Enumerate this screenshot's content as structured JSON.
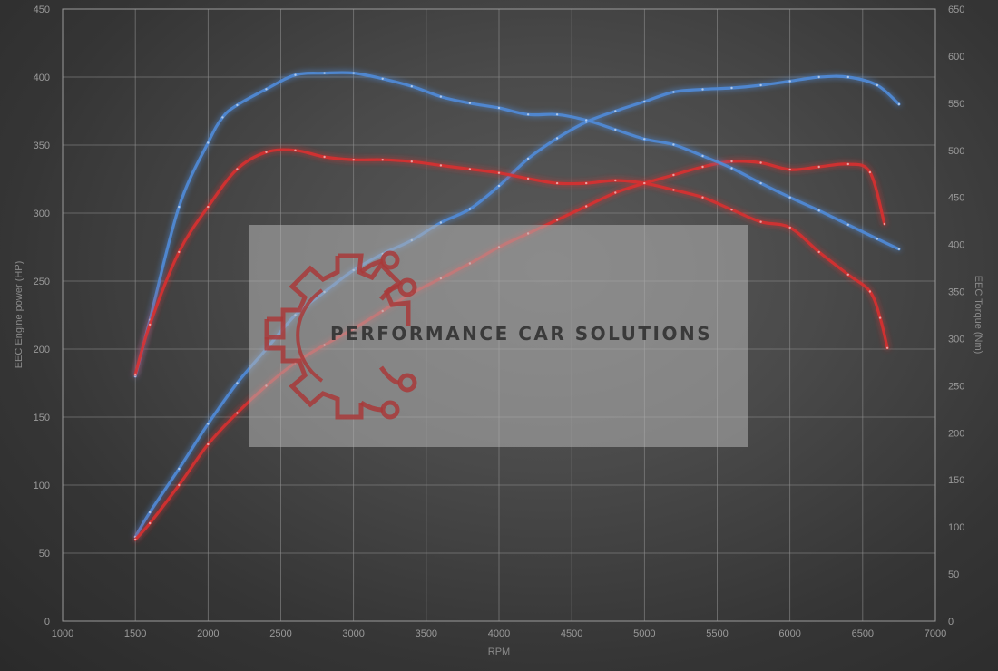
{
  "chart_data": {
    "type": "line",
    "xlabel": "RPM",
    "ylabel_left": "EEC Engine power (HP)",
    "ylabel_right": "EEC Torque (Nm)",
    "xlim": [
      1000,
      7000
    ],
    "ylim_left": [
      0,
      450
    ],
    "ylim_right": [
      0,
      650
    ],
    "x_ticks": [
      1000,
      1500,
      2000,
      2500,
      3000,
      3500,
      4000,
      4500,
      5000,
      5500,
      6000,
      6500,
      7000
    ],
    "y_left_ticks": [
      0,
      50,
      100,
      150,
      200,
      250,
      300,
      350,
      400,
      450
    ],
    "y_right_ticks": [
      0,
      50,
      100,
      150,
      200,
      250,
      300,
      350,
      400,
      450,
      500,
      550,
      600,
      650
    ],
    "grid": true,
    "series": [
      {
        "axis": "left",
        "color": "#4f8bd8",
        "points": [
          [
            1500,
            62
          ],
          [
            1600,
            80
          ],
          [
            1800,
            112
          ],
          [
            2000,
            145
          ],
          [
            2200,
            175
          ],
          [
            2400,
            200
          ],
          [
            2600,
            225
          ],
          [
            2800,
            242
          ],
          [
            3000,
            258
          ],
          [
            3200,
            270
          ],
          [
            3400,
            280
          ],
          [
            3600,
            293
          ],
          [
            3800,
            303
          ],
          [
            4000,
            320
          ],
          [
            4200,
            340
          ],
          [
            4400,
            355
          ],
          [
            4600,
            367
          ],
          [
            4800,
            375
          ],
          [
            5000,
            382
          ],
          [
            5200,
            389
          ],
          [
            5400,
            391
          ],
          [
            5600,
            392
          ],
          [
            5800,
            394
          ],
          [
            6000,
            397
          ],
          [
            6200,
            400
          ],
          [
            6400,
            400
          ],
          [
            6600,
            394
          ],
          [
            6750,
            380
          ]
        ]
      },
      {
        "axis": "left",
        "color": "#d83030",
        "points": [
          [
            1500,
            60
          ],
          [
            1600,
            72
          ],
          [
            1800,
            100
          ],
          [
            2000,
            130
          ],
          [
            2200,
            153
          ],
          [
            2400,
            173
          ],
          [
            2600,
            190
          ],
          [
            2800,
            203
          ],
          [
            3000,
            215
          ],
          [
            3200,
            228
          ],
          [
            3400,
            241
          ],
          [
            3600,
            252
          ],
          [
            3800,
            263
          ],
          [
            4000,
            275
          ],
          [
            4200,
            285
          ],
          [
            4400,
            295
          ],
          [
            4600,
            305
          ],
          [
            4800,
            315
          ],
          [
            5000,
            322
          ],
          [
            5200,
            328
          ],
          [
            5400,
            334
          ],
          [
            5600,
            338
          ],
          [
            5800,
            337
          ],
          [
            6000,
            332
          ],
          [
            6200,
            334
          ],
          [
            6400,
            336
          ],
          [
            6550,
            330
          ],
          [
            6650,
            292
          ]
        ]
      },
      {
        "axis": "right",
        "color": "#4f8bd8",
        "points": [
          [
            1500,
            260
          ],
          [
            1600,
            320
          ],
          [
            1800,
            440
          ],
          [
            2000,
            508
          ],
          [
            2100,
            535
          ],
          [
            2200,
            548
          ],
          [
            2400,
            565
          ],
          [
            2600,
            580
          ],
          [
            2800,
            582
          ],
          [
            3000,
            582
          ],
          [
            3200,
            576
          ],
          [
            3400,
            568
          ],
          [
            3600,
            557
          ],
          [
            3800,
            550
          ],
          [
            4000,
            545
          ],
          [
            4200,
            538
          ],
          [
            4400,
            538
          ],
          [
            4600,
            532
          ],
          [
            4800,
            522
          ],
          [
            5000,
            512
          ],
          [
            5200,
            506
          ],
          [
            5400,
            494
          ],
          [
            5600,
            481
          ],
          [
            5800,
            465
          ],
          [
            6000,
            450
          ],
          [
            6200,
            436
          ],
          [
            6400,
            421
          ],
          [
            6600,
            406
          ],
          [
            6750,
            395
          ]
        ]
      },
      {
        "axis": "right",
        "color": "#d83030",
        "points": [
          [
            1500,
            262
          ],
          [
            1600,
            315
          ],
          [
            1800,
            392
          ],
          [
            2000,
            440
          ],
          [
            2200,
            480
          ],
          [
            2400,
            498
          ],
          [
            2600,
            500
          ],
          [
            2800,
            493
          ],
          [
            3000,
            490
          ],
          [
            3200,
            490
          ],
          [
            3400,
            488
          ],
          [
            3600,
            484
          ],
          [
            3800,
            480
          ],
          [
            4000,
            476
          ],
          [
            4200,
            470
          ],
          [
            4400,
            465
          ],
          [
            4600,
            465
          ],
          [
            4800,
            468
          ],
          [
            5000,
            465
          ],
          [
            5200,
            458
          ],
          [
            5400,
            450
          ],
          [
            5600,
            437
          ],
          [
            5800,
            424
          ],
          [
            6000,
            418
          ],
          [
            6200,
            392
          ],
          [
            6400,
            368
          ],
          [
            6550,
            350
          ],
          [
            6620,
            322
          ],
          [
            6670,
            290
          ]
        ]
      }
    ]
  },
  "watermark": {
    "text": "PERFORMANCE CAR SOLUTIONS",
    "icon": "gear-circuit-logo-icon"
  }
}
